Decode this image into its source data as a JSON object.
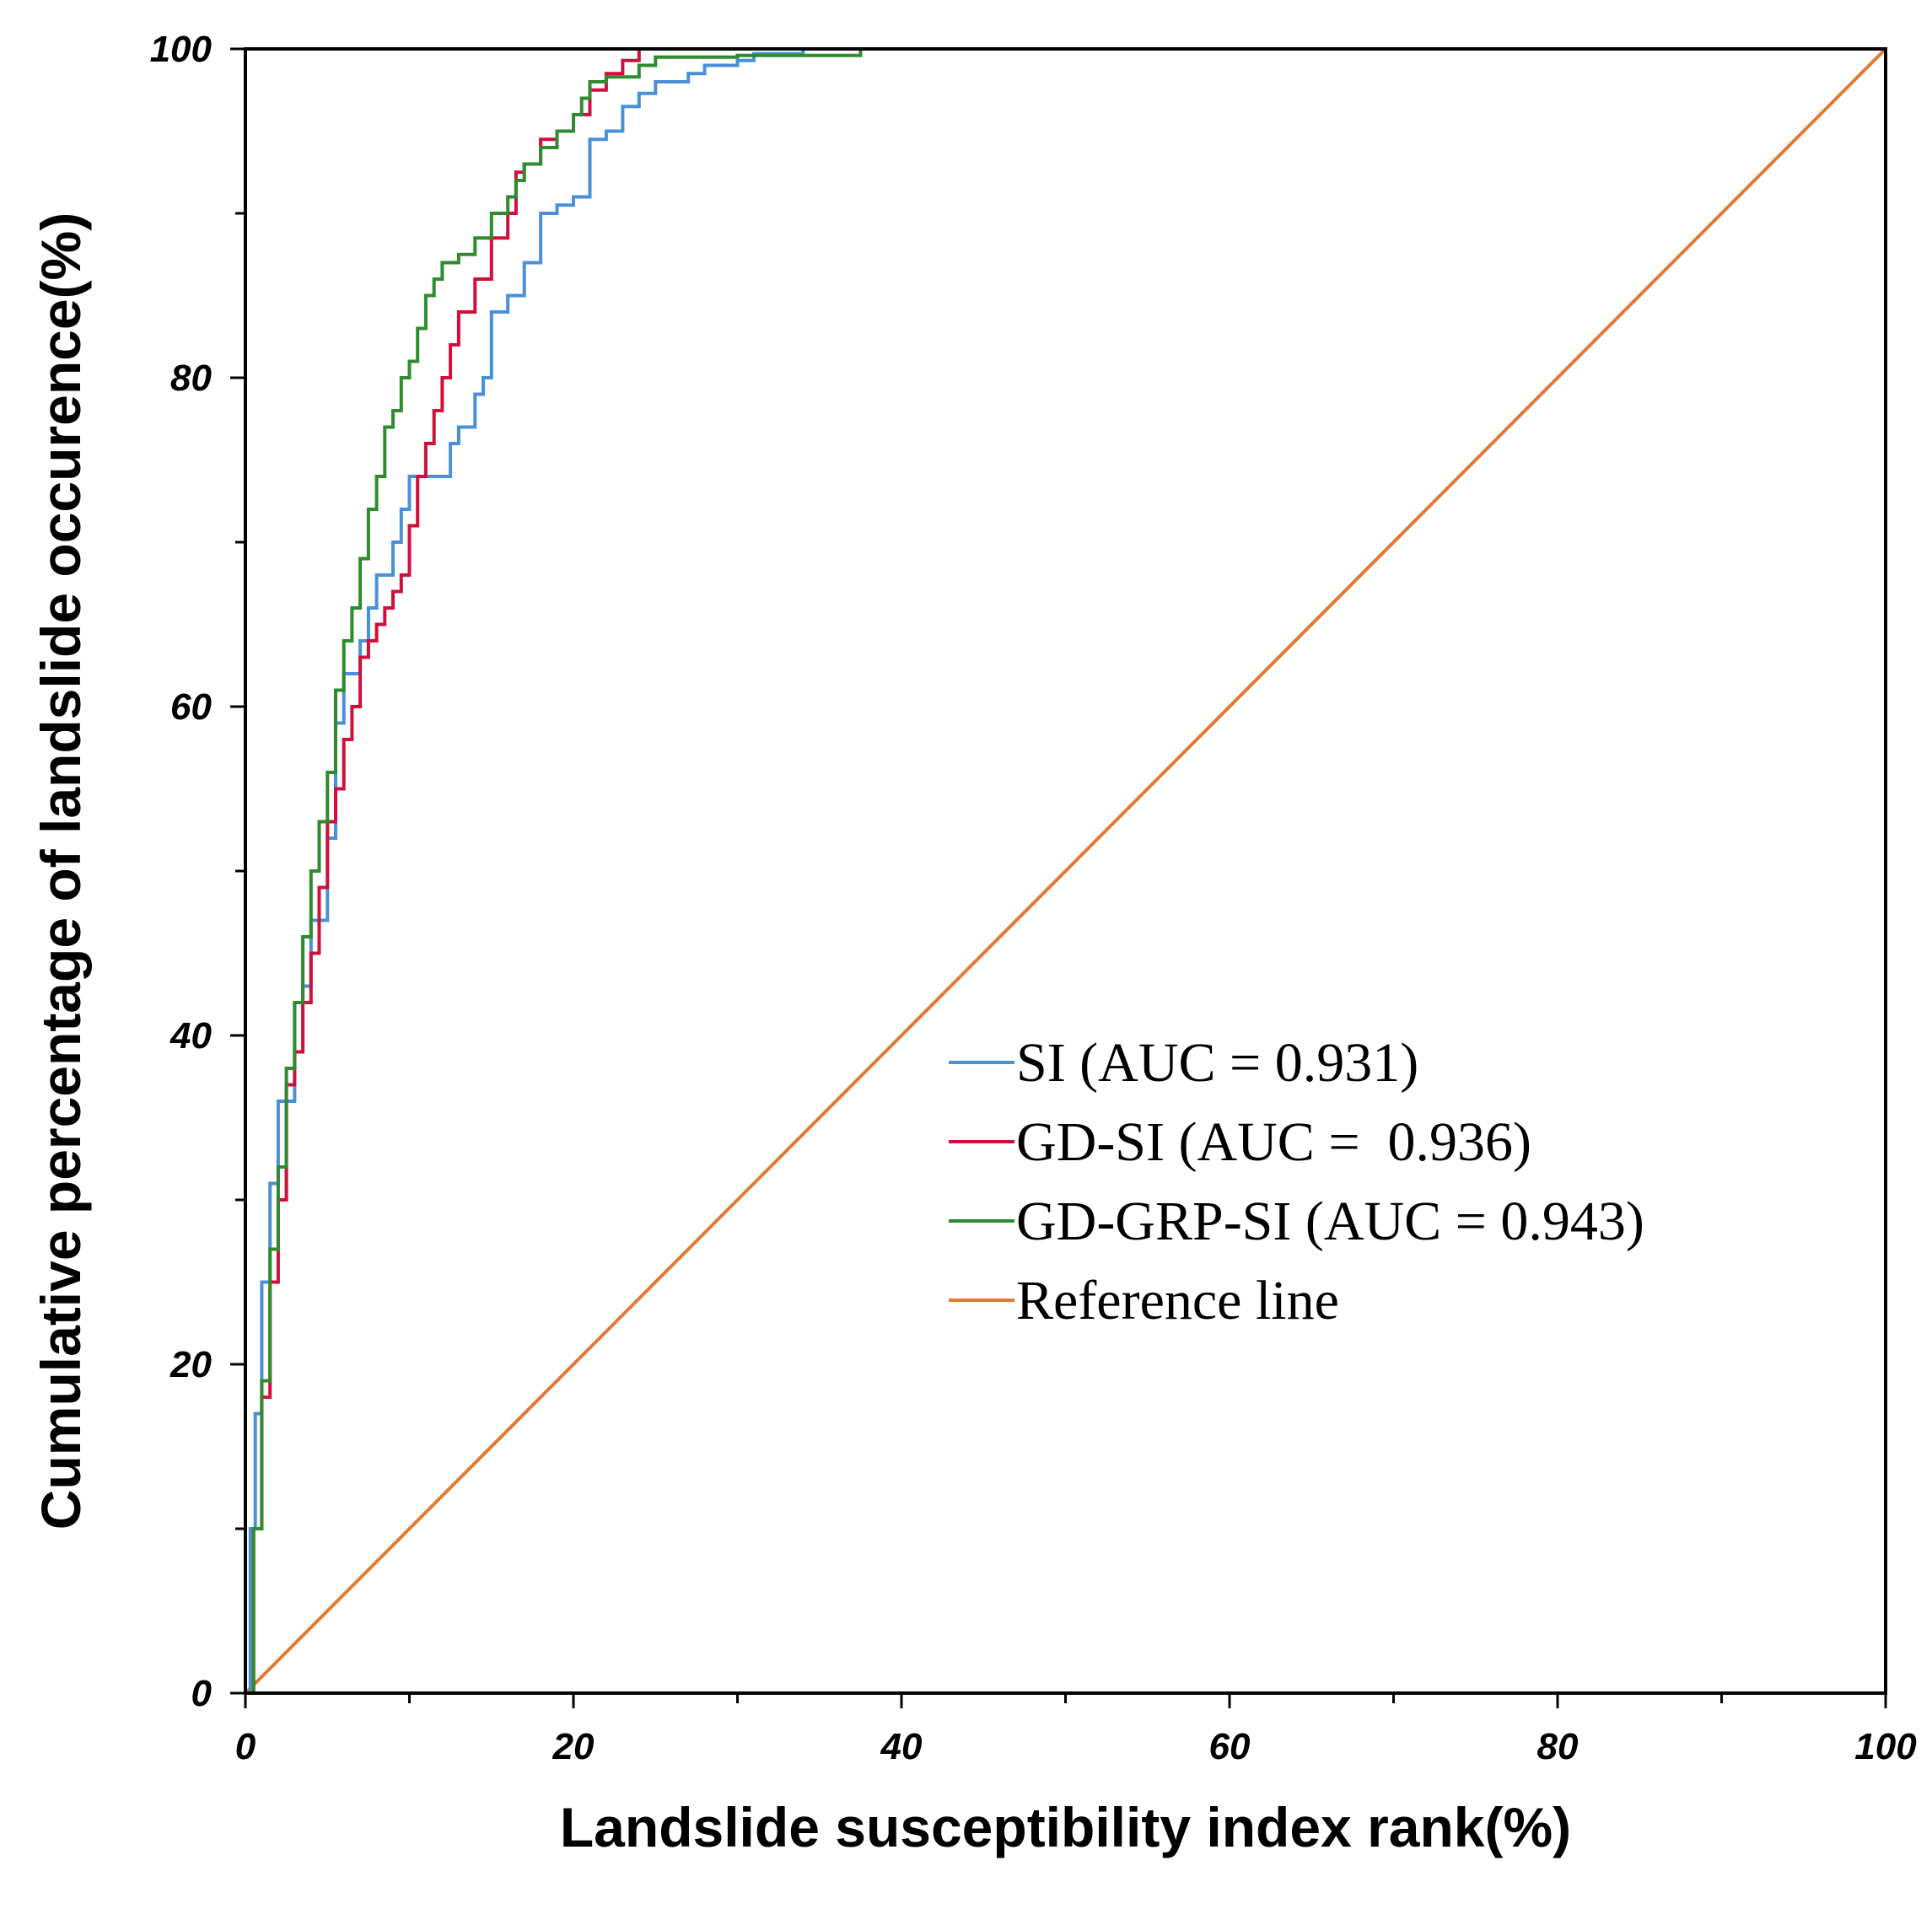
{
  "chart_data": {
    "type": "line",
    "xlabel": "Landslide susceptibility index rank(%)",
    "ylabel": "Cumulative percentage of landslide occurence(%)",
    "xlim": [
      0,
      100
    ],
    "ylim": [
      0,
      100
    ],
    "x_ticks": [
      "0",
      "20",
      "40",
      "60",
      "80",
      "100"
    ],
    "y_ticks": [
      "0",
      "20",
      "40",
      "60",
      "80",
      "100"
    ],
    "grid": false,
    "legend_position": "center-right",
    "series": [
      {
        "name": "SI (AUC = 0.931)",
        "color": "#4A90D9",
        "points": [
          [
            0,
            0
          ],
          [
            0.3,
            10
          ],
          [
            0.6,
            17
          ],
          [
            1,
            25
          ],
          [
            1.5,
            31
          ],
          [
            2,
            36
          ],
          [
            3,
            42
          ],
          [
            3.5,
            43
          ],
          [
            4,
            47
          ],
          [
            5,
            52
          ],
          [
            5.5,
            59
          ],
          [
            6,
            62
          ],
          [
            7,
            64
          ],
          [
            7.5,
            66
          ],
          [
            8,
            68
          ],
          [
            9,
            70
          ],
          [
            9.5,
            72
          ],
          [
            10,
            74
          ],
          [
            11,
            74
          ],
          [
            12,
            74
          ],
          [
            12.5,
            76
          ],
          [
            13,
            77
          ],
          [
            14,
            79
          ],
          [
            14.5,
            80
          ],
          [
            15,
            84
          ],
          [
            16,
            85
          ],
          [
            17,
            87
          ],
          [
            18,
            90
          ],
          [
            19,
            90.5
          ],
          [
            20,
            91
          ],
          [
            21,
            94.5
          ],
          [
            22,
            95
          ],
          [
            23,
            96.5
          ],
          [
            24,
            97.3
          ],
          [
            25,
            98
          ],
          [
            27,
            98.5
          ],
          [
            28,
            99
          ],
          [
            30,
            99.3
          ],
          [
            31,
            99.7
          ],
          [
            34,
            100
          ]
        ]
      },
      {
        "name": "GD-SI (AUC =  0.936)",
        "color": "#D0103A",
        "points": [
          [
            0,
            0
          ],
          [
            0.5,
            10
          ],
          [
            1,
            18
          ],
          [
            1.5,
            25
          ],
          [
            2,
            30
          ],
          [
            2.5,
            37
          ],
          [
            3,
            39
          ],
          [
            3.5,
            42
          ],
          [
            4,
            45
          ],
          [
            4.5,
            49
          ],
          [
            5,
            53
          ],
          [
            5.5,
            55
          ],
          [
            6,
            58
          ],
          [
            6.5,
            60
          ],
          [
            7,
            63
          ],
          [
            7.5,
            64
          ],
          [
            8,
            65
          ],
          [
            8.5,
            66
          ],
          [
            9,
            67
          ],
          [
            9.5,
            68
          ],
          [
            10,
            71
          ],
          [
            10.5,
            74
          ],
          [
            11,
            76
          ],
          [
            11.5,
            78
          ],
          [
            12,
            80
          ],
          [
            12.5,
            82
          ],
          [
            13,
            84
          ],
          [
            14,
            86
          ],
          [
            15,
            88.5
          ],
          [
            16,
            90
          ],
          [
            16.5,
            92.5
          ],
          [
            17,
            93
          ],
          [
            18,
            94.5
          ],
          [
            19,
            95
          ],
          [
            20,
            96
          ],
          [
            21,
            97.5
          ],
          [
            22,
            98.5
          ],
          [
            23,
            99.3
          ],
          [
            24,
            100
          ],
          [
            25,
            100
          ],
          [
            26,
            100
          ],
          [
            26.5,
            100
          ]
        ]
      },
      {
        "name": "GD-GRP-SI (AUC = 0.943)",
        "color": "#2E8B2E",
        "points": [
          [
            0,
            0
          ],
          [
            0.5,
            10
          ],
          [
            1,
            19
          ],
          [
            1.5,
            27
          ],
          [
            2,
            32
          ],
          [
            2.5,
            38
          ],
          [
            3,
            42
          ],
          [
            3.5,
            46
          ],
          [
            4,
            50
          ],
          [
            4.5,
            53
          ],
          [
            5,
            56
          ],
          [
            5.5,
            61
          ],
          [
            6,
            64
          ],
          [
            6.5,
            66
          ],
          [
            7,
            69
          ],
          [
            7.5,
            72
          ],
          [
            8,
            74
          ],
          [
            8.5,
            77
          ],
          [
            9,
            78
          ],
          [
            9.5,
            80
          ],
          [
            10,
            81
          ],
          [
            10.5,
            83
          ],
          [
            11,
            85
          ],
          [
            11.5,
            86
          ],
          [
            12,
            87
          ],
          [
            13,
            87.5
          ],
          [
            14,
            88.5
          ],
          [
            15,
            90
          ],
          [
            16,
            91
          ],
          [
            16.5,
            92
          ],
          [
            17,
            93
          ],
          [
            18,
            94
          ],
          [
            19,
            95
          ],
          [
            20,
            96
          ],
          [
            20.5,
            97
          ],
          [
            21,
            98
          ],
          [
            22,
            98.3
          ],
          [
            24,
            99
          ],
          [
            25,
            99.5
          ],
          [
            30,
            99.6
          ],
          [
            35,
            99.6
          ],
          [
            37.5,
            100
          ]
        ]
      },
      {
        "name": "Reference line",
        "color": "#E07A35",
        "points": [
          [
            0,
            0
          ],
          [
            100,
            100
          ]
        ]
      }
    ]
  }
}
